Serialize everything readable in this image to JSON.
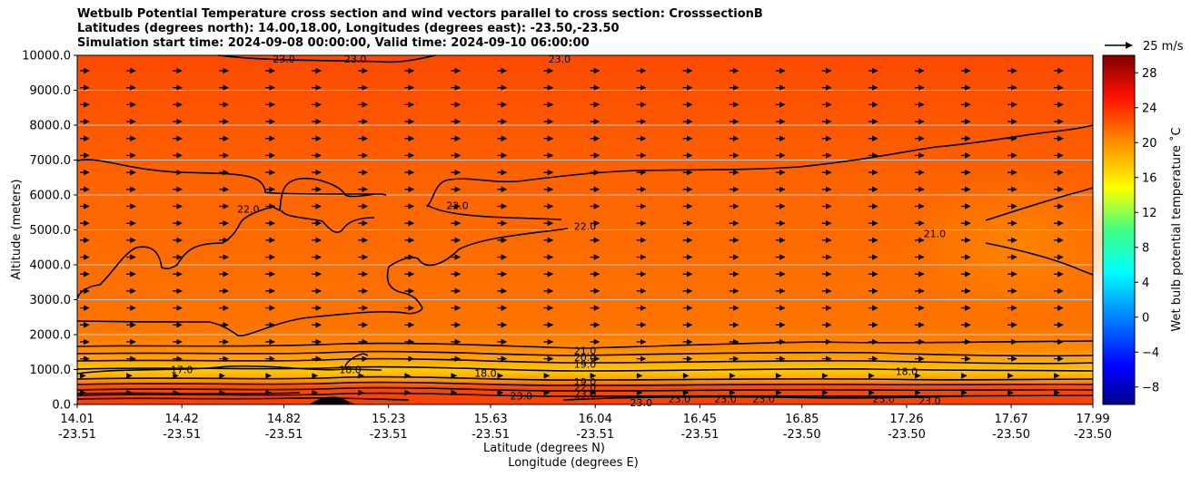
{
  "title": {
    "line1": "Wetbulb Potential Temperature cross section and wind vectors parallel to cross section: CrosssectionB",
    "line2": "Latitudes (degrees north): 14.00,18.00, Longitudes (degrees east): -23.50,-23.50",
    "line3": "Simulation start time: 2024-09-08 00:00:00, Valid time: 2024-09-10 06:00:00"
  },
  "chart_data": {
    "type": "contour",
    "ylabel": "Altitude (meters)",
    "xlabel_lat": "Latitude (degrees N)",
    "xlabel_lon": "Longitude (degrees E)",
    "ylim": [
      0,
      10000
    ],
    "yticks": [
      "0.0",
      "1000.0",
      "2000.0",
      "3000.0",
      "4000.0",
      "5000.0",
      "6000.0",
      "7000.0",
      "8000.0",
      "9000.0",
      "10000.0"
    ],
    "xticks": [
      {
        "lat": "14.01",
        "lon": "-23.51"
      },
      {
        "lat": "14.42",
        "lon": "-23.51"
      },
      {
        "lat": "14.82",
        "lon": "-23.51"
      },
      {
        "lat": "15.23",
        "lon": "-23.51"
      },
      {
        "lat": "15.63",
        "lon": "-23.51"
      },
      {
        "lat": "16.04",
        "lon": "-23.51"
      },
      {
        "lat": "16.45",
        "lon": "-23.51"
      },
      {
        "lat": "16.85",
        "lon": "-23.50"
      },
      {
        "lat": "17.26",
        "lon": "-23.50"
      },
      {
        "lat": "17.67",
        "lon": "-23.50"
      },
      {
        "lat": "17.99",
        "lon": "-23.50"
      }
    ],
    "colorbar": {
      "label": "Wet bulb potential temperature ˚C",
      "range": [
        -10,
        30
      ],
      "ticks": [
        "28",
        "24",
        "20",
        "16",
        "12",
        "8",
        "4",
        "0",
        "−4",
        "−8"
      ]
    },
    "quiver_key": "25 m/s",
    "grid": "horizontal",
    "contour_labels": [
      {
        "text": "23.0",
        "lat": 14.82,
        "alt": 9900
      },
      {
        "text": "23.0",
        "lat": 15.1,
        "alt": 9900
      },
      {
        "text": "23.0",
        "lat": 15.9,
        "alt": 9900
      },
      {
        "text": "22.0",
        "lat": 14.68,
        "alt": 5600
      },
      {
        "text": "22.0",
        "lat": 15.5,
        "alt": 5700
      },
      {
        "text": "22.0",
        "lat": 16.0,
        "alt": 5100
      },
      {
        "text": "21.0",
        "lat": 17.37,
        "alt": 4900
      },
      {
        "text": "21.0",
        "lat": 16.0,
        "alt": 1550
      },
      {
        "text": "20.0",
        "lat": 16.0,
        "alt": 1350
      },
      {
        "text": "19.0",
        "lat": 16.0,
        "alt": 1150
      },
      {
        "text": "18.0",
        "lat": 15.08,
        "alt": 1000
      },
      {
        "text": "18.0",
        "lat": 15.61,
        "alt": 900
      },
      {
        "text": "18.0",
        "lat": 17.26,
        "alt": 950
      },
      {
        "text": "17.0",
        "lat": 14.42,
        "alt": 1000
      },
      {
        "text": "19.0",
        "lat": 16.0,
        "alt": 650
      },
      {
        "text": "22.0",
        "lat": 16.0,
        "alt": 500
      },
      {
        "text": "23.0",
        "lat": 16.0,
        "alt": 300
      },
      {
        "text": "23.0",
        "lat": 15.75,
        "alt": 250
      },
      {
        "text": "23.0",
        "lat": 16.22,
        "alt": 50
      },
      {
        "text": "23.0",
        "lat": 16.37,
        "alt": 150
      },
      {
        "text": "23.0",
        "lat": 16.55,
        "alt": 150
      },
      {
        "text": "23.0",
        "lat": 16.7,
        "alt": 150
      },
      {
        "text": "23.0",
        "lat": 17.17,
        "alt": 150
      },
      {
        "text": "23.0",
        "lat": 17.35,
        "alt": 100
      }
    ]
  }
}
